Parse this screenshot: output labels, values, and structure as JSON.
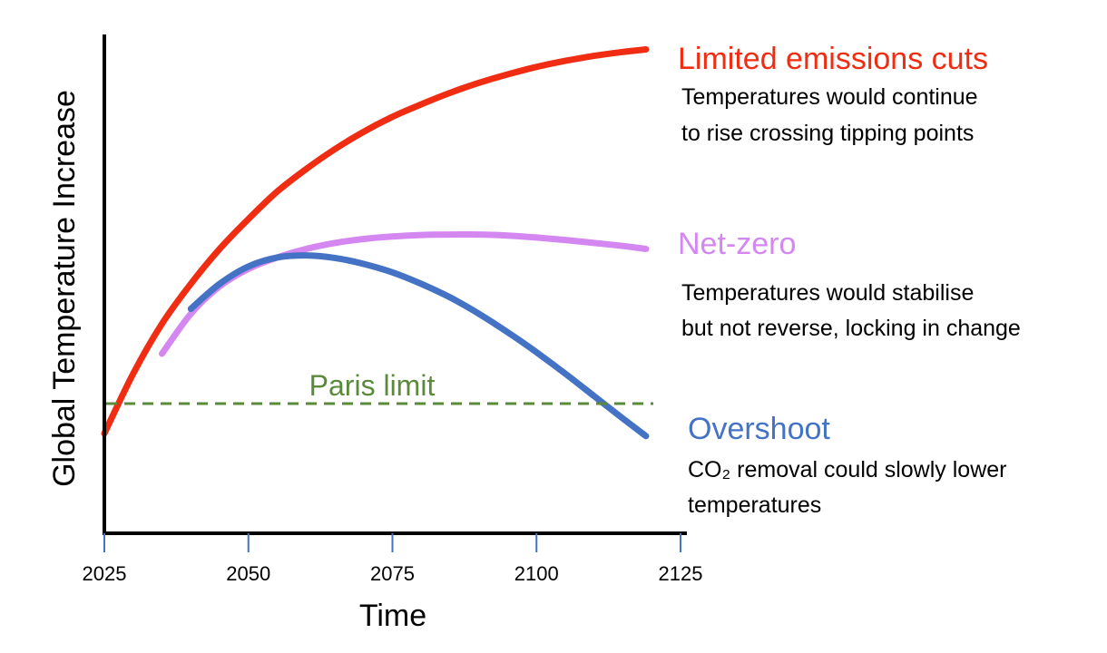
{
  "chart_data": {
    "type": "line",
    "xlabel": "Time",
    "ylabel": "Global Temperature Increase",
    "x_ticks": [
      2025,
      2050,
      2075,
      2100,
      2125
    ],
    "xlim": [
      2025,
      2125
    ],
    "ylim": [
      0,
      100
    ],
    "series": [
      {
        "name": "Limited emissions cuts",
        "color": "#f02c12",
        "description": [
          "Temperatures would continue",
          "to rise crossing tipping points"
        ],
        "x": [
          2025,
          2030,
          2035,
          2040,
          2045,
          2050,
          2055,
          2060,
          2065,
          2070,
          2075,
          2080,
          2085,
          2090,
          2095,
          2100,
          2105,
          2110,
          2115,
          2119
        ],
        "values": [
          20,
          32,
          42,
          50,
          57,
          63,
          68.5,
          73,
          77,
          80.5,
          83.5,
          86,
          88.3,
          90.3,
          92,
          93.5,
          94.7,
          95.7,
          96.5,
          97
        ]
      },
      {
        "name": "Net-zero",
        "color": "#d487f0",
        "description": [
          "Temperatures would stabilise",
          "but not reverse, locking in change"
        ],
        "x": [
          2035,
          2040,
          2045,
          2050,
          2055,
          2060,
          2065,
          2070,
          2075,
          2080,
          2085,
          2090,
          2095,
          2100,
          2105,
          2110,
          2115,
          2119
        ],
        "values": [
          36,
          44,
          49.5,
          53,
          55.3,
          57,
          58.2,
          59,
          59.5,
          59.8,
          59.9,
          59.9,
          59.7,
          59.3,
          58.8,
          58.2,
          57.6,
          57
        ]
      },
      {
        "name": "Overshoot",
        "color": "#4472c4",
        "description": [
          "CO₂ removal could slowly lower",
          "temperatures"
        ],
        "x": [
          2040,
          2045,
          2050,
          2055,
          2060,
          2065,
          2070,
          2075,
          2080,
          2085,
          2090,
          2095,
          2100,
          2105,
          2110,
          2115,
          2119
        ],
        "values": [
          45,
          50,
          53.5,
          55.3,
          55.7,
          55.2,
          54,
          52.3,
          50,
          47.3,
          44,
          40.3,
          36.3,
          32,
          27.5,
          23,
          19.5
        ]
      }
    ],
    "reference_line": {
      "label": "Paris limit",
      "value": 26,
      "color": "#5b8a3a",
      "style": "dashed"
    }
  }
}
